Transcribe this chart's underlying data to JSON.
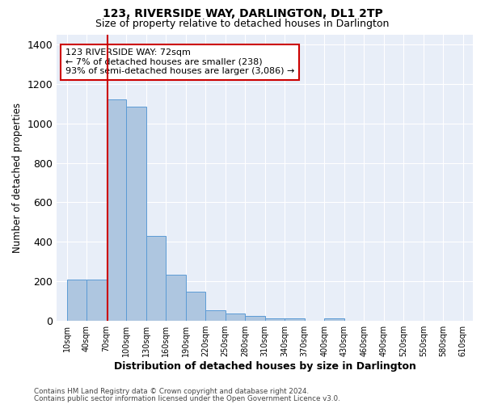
{
  "title": "123, RIVERSIDE WAY, DARLINGTON, DL1 2TP",
  "subtitle": "Size of property relative to detached houses in Darlington",
  "xlabel": "Distribution of detached houses by size in Darlington",
  "ylabel": "Number of detached properties",
  "categories": [
    "10sqm",
    "40sqm",
    "70sqm",
    "100sqm",
    "130sqm",
    "160sqm",
    "190sqm",
    "220sqm",
    "250sqm",
    "280sqm",
    "310sqm",
    "340sqm",
    "370sqm",
    "400sqm",
    "430sqm",
    "460sqm",
    "490sqm",
    "520sqm",
    "550sqm",
    "580sqm",
    "610sqm"
  ],
  "bin_edges": [
    10,
    40,
    70,
    100,
    130,
    160,
    190,
    220,
    250,
    280,
    310,
    340,
    370,
    400,
    430,
    460,
    490,
    520,
    550,
    580,
    610,
    640
  ],
  "values": [
    210,
    210,
    1120,
    1085,
    430,
    235,
    148,
    55,
    38,
    25,
    12,
    15,
    0,
    15,
    0,
    0,
    0,
    0,
    0,
    0,
    0
  ],
  "bar_color": "#aec6e0",
  "bar_edge_color": "#5b9bd5",
  "bg_color": "#e8eef8",
  "grid_color": "#ffffff",
  "red_line_sqm": 72,
  "annotation_text_line1": "123 RIVERSIDE WAY: 72sqm",
  "annotation_text_line2": "← 7% of detached houses are smaller (238)",
  "annotation_text_line3": "93% of semi-detached houses are larger (3,086) →",
  "annotation_box_edgecolor": "#cc0000",
  "ylim": [
    0,
    1450
  ],
  "yticks": [
    0,
    200,
    400,
    600,
    800,
    1000,
    1200,
    1400
  ],
  "title_fontsize": 10,
  "subtitle_fontsize": 9,
  "footer1": "Contains HM Land Registry data © Crown copyright and database right 2024.",
  "footer2": "Contains public sector information licensed under the Open Government Licence v3.0."
}
